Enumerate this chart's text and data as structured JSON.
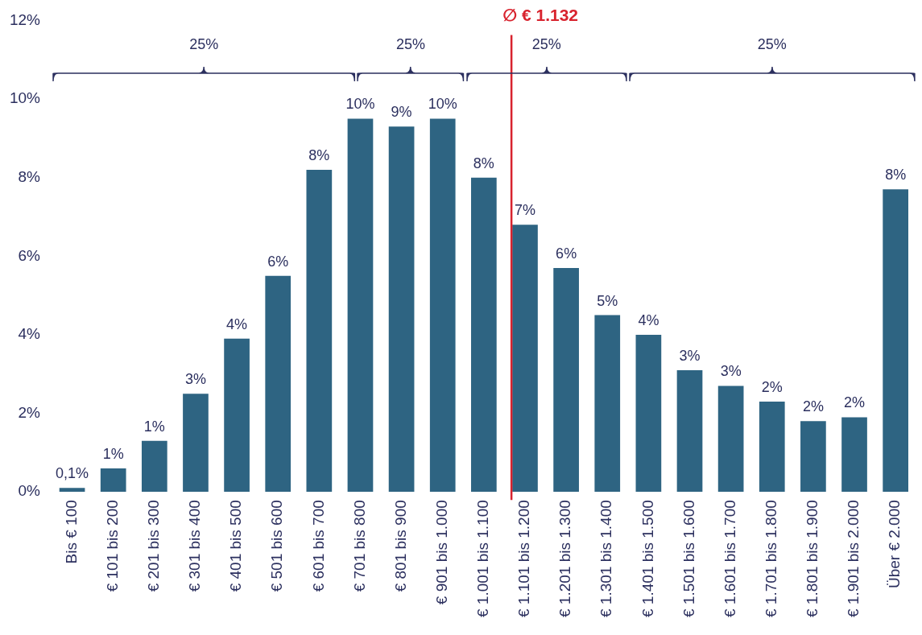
{
  "chart_data": {
    "type": "bar",
    "categories": [
      "Bis € 100",
      "€ 101 bis 200",
      "€ 201 bis 300",
      "€ 301 bis 400",
      "€ 401 bis 500",
      "€ 501 bis 600",
      "€ 601 bis 700",
      "€ 701 bis 800",
      "€ 801 bis 900",
      "€ 901 bis 1.000",
      "€ 1.001 bis 1.100",
      "€ 1.101 bis 1.200",
      "€ 1.201 bis 1.300",
      "€ 1.301 bis 1.400",
      "€ 1.401 bis 1.500",
      "€ 1.501 bis 1.600",
      "€ 1.601 bis 1.700",
      "€ 1.701 bis 1.800",
      "€ 1.801 bis 1.900",
      "€ 1.901 bis 2.000",
      "Über € 2.000"
    ],
    "values": [
      0.1,
      0.6,
      1.3,
      2.5,
      3.9,
      5.5,
      8.2,
      9.5,
      9.3,
      9.5,
      8.0,
      6.8,
      5.7,
      4.5,
      4.0,
      3.1,
      2.7,
      2.3,
      1.8,
      1.9,
      7.7
    ],
    "color": "#2e6482",
    "value_labels": [
      "0,1%",
      "1%",
      "1%",
      "3%",
      "4%",
      "6%",
      "8%",
      "10%",
      "9%",
      "10%",
      "8%",
      "7%",
      "6%",
      "5%",
      "4%",
      "3%",
      "3%",
      "2%",
      "2%",
      "2%",
      "8%"
    ],
    "ylim": [
      0,
      12
    ],
    "yticks": [
      {
        "value": 0,
        "label": "0%"
      },
      {
        "value": 2,
        "label": "2%"
      },
      {
        "value": 4,
        "label": "4%"
      },
      {
        "value": 6,
        "label": "6%"
      },
      {
        "value": 8,
        "label": "8%"
      },
      {
        "value": 10,
        "label": "10%"
      },
      {
        "value": 12,
        "label": "12%"
      }
    ],
    "ref_lines": [
      {
        "axis": "x",
        "value": "€ 1.101 bis 1.200",
        "label": "∅ € 1.132",
        "color": "#d8232e"
      }
    ],
    "annotations": [
      "25%",
      "25%",
      "25%",
      "25%"
    ],
    "grid": false
  }
}
